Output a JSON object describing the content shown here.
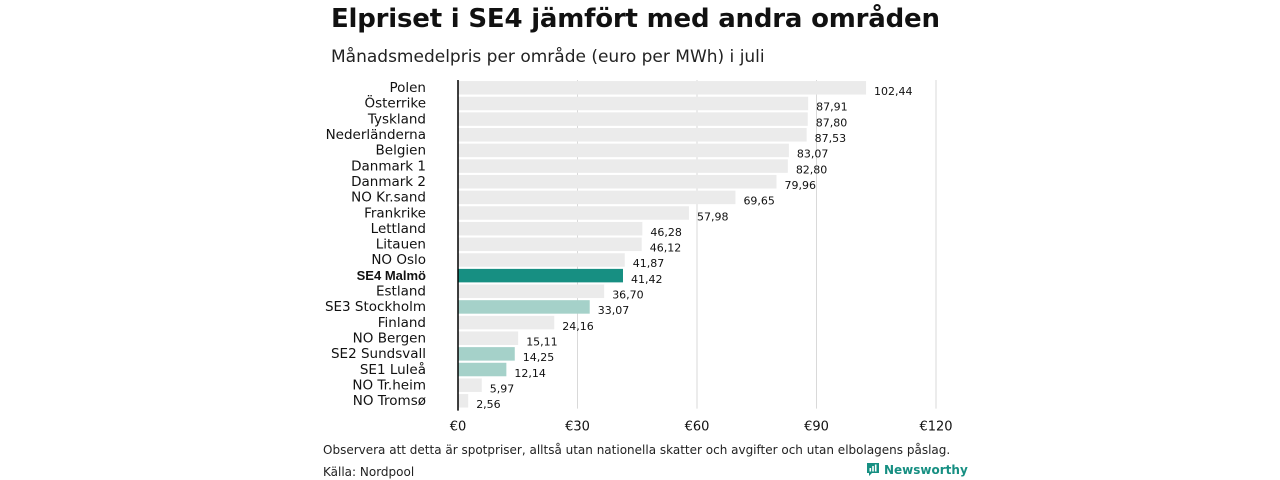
{
  "header": {
    "title": "Elpriset i SE4 jämfört med andra områden",
    "subtitle": "Månadsmedelpris per område (euro per MWh) i juli"
  },
  "footer": {
    "note": "Observera att detta är spotpriser, alltså utan nationella skatter och avgifter och utan elbolagens påslag.",
    "source": "Källa: Nordpool",
    "brand": "Newsworthy",
    "brand_icon": "chart-logo-icon"
  },
  "colors": {
    "default_bar": "#ebebeb",
    "highlight_bar": "#178f82",
    "swedish_bar": "#a5d1c9",
    "grid": "#d9d9d9",
    "axis": "#000000",
    "brand": "#168f82"
  },
  "chart_data": {
    "type": "bar",
    "orientation": "horizontal",
    "title": "Elpriset i SE4 jämfört med andra områden",
    "subtitle": "Månadsmedelpris per område (euro per MWh) i juli",
    "xlim": [
      0,
      120
    ],
    "xticks": [
      0,
      30,
      60,
      90,
      120
    ],
    "xtick_labels": [
      "€0",
      "€30",
      "€60",
      "€90",
      "€120"
    ],
    "grid": true,
    "categories": [
      "Polen",
      "Österrike",
      "Tyskland",
      "Nederländerna",
      "Belgien",
      "Danmark  1",
      "Danmark  2",
      "NO Kr.sand",
      "Frankrike",
      "Lettland",
      "Litauen",
      "NO Oslo",
      "SE4 Malmö",
      "Estland",
      "SE3  Stockholm",
      "Finland",
      "NO Bergen",
      "SE2  Sundsvall",
      "SE1  Luleå",
      "NO Tr.heim",
      "NO Tromsø"
    ],
    "values": [
      102.44,
      87.91,
      87.8,
      87.53,
      83.07,
      82.8,
      79.96,
      69.65,
      57.98,
      46.28,
      46.12,
      41.87,
      41.42,
      36.7,
      33.07,
      24.16,
      15.11,
      14.25,
      12.14,
      5.97,
      2.56
    ],
    "value_labels": [
      "102,44",
      "87,91",
      "87,80",
      "87,53",
      "83,07",
      "82,80",
      "79,96",
      "69,65",
      "57,98",
      "46,28",
      "46,12",
      "41,87",
      "41,42",
      "36,70",
      "33,07",
      "24,16",
      "15,11",
      "14,25",
      "12,14",
      "5,97",
      "2,56"
    ],
    "highlight": [
      "SE4 Malmö"
    ],
    "secondary_highlight": [
      "SE3  Stockholm",
      "SE2  Sundsvall",
      "SE1  Luleå"
    ]
  }
}
